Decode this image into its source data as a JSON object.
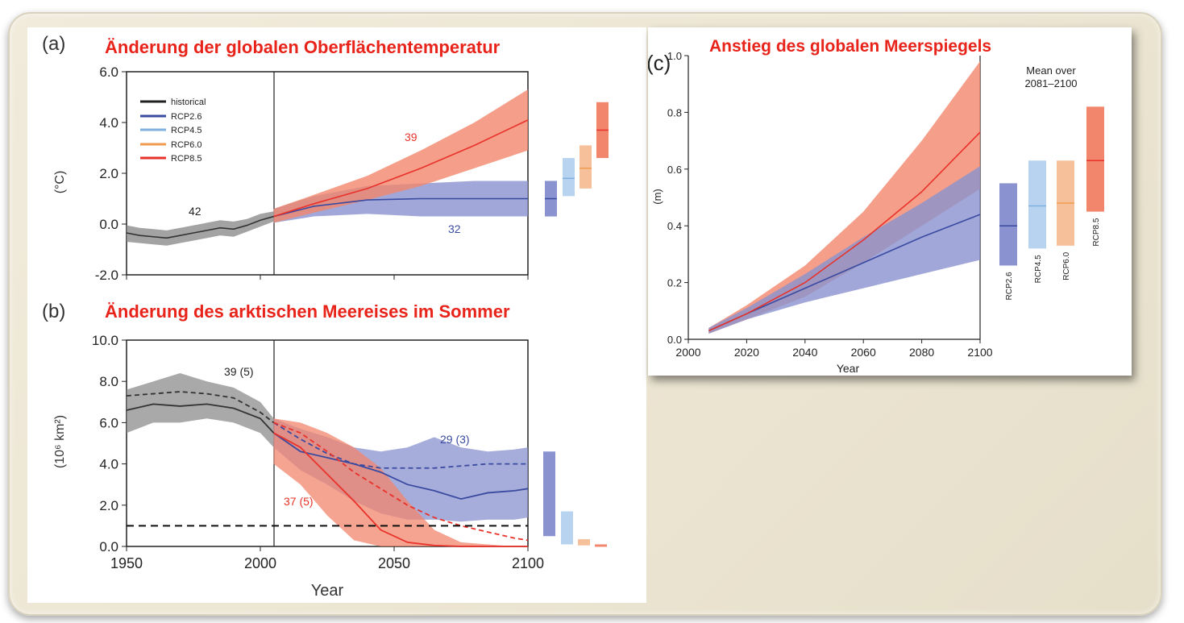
{
  "colors": {
    "historical": "#333333",
    "rcp26": "#3a4aa0",
    "rcp45": "#7fb0e0",
    "rcp60": "#f09a50",
    "rcp85": "#e8322a",
    "rcp26_band": "#8a92cf",
    "rcp85_band": "#f2866c",
    "title_red": "#e8231a"
  },
  "panel_a": {
    "label": "(a)",
    "title": "Änderung der globalen Oberflächentemperatur",
    "ylabel": "(°C)",
    "ann_42": "42",
    "ann_39": "39",
    "ann_32": "32",
    "legend": [
      "historical",
      "RCP2.6",
      "RCP4.5",
      "RCP6.0",
      "RCP8.5"
    ]
  },
  "panel_b": {
    "label": "(b)",
    "title": "Änderung des arktischen Meereises  im Sommer",
    "ylabel": "(10⁶ km²)",
    "xlabel": "Year",
    "ann_39_5": "39 (5)",
    "ann_29_3": "29 (3)",
    "ann_37_5": "37 (5)"
  },
  "panel_c": {
    "label": "(c)",
    "title": "Anstieg des globalen Meerspiegels",
    "ylabel": "(m)",
    "xlabel": "Year",
    "mean_over_1": "Mean over",
    "mean_over_2": "2081–2100",
    "bar_labels": [
      "RCP2.6",
      "RCP4.5",
      "RCP6.0",
      "RCP8.5"
    ]
  },
  "chart_data": [
    {
      "type": "line",
      "ylabel": "(°C)",
      "ylim": [
        -2.0,
        6.0
      ],
      "xlim": [
        1950,
        2100
      ],
      "yticks": [
        "-2.0",
        "0.0",
        "2.0",
        "4.0",
        "6.0"
      ],
      "series": [
        {
          "name": "historical",
          "x": [
            1950,
            1955,
            1960,
            1965,
            1970,
            1975,
            1980,
            1985,
            1990,
            1995,
            2000,
            2005
          ],
          "y": [
            -0.35,
            -0.45,
            -0.5,
            -0.55,
            -0.45,
            -0.35,
            -0.25,
            -0.15,
            -0.2,
            -0.05,
            0.15,
            0.3
          ],
          "lower": [
            -0.7,
            -0.75,
            -0.8,
            -0.85,
            -0.75,
            -0.65,
            -0.55,
            -0.45,
            -0.5,
            -0.3,
            -0.1,
            0.1
          ],
          "upper": [
            -0.05,
            -0.15,
            -0.2,
            -0.25,
            -0.15,
            -0.05,
            0.05,
            0.15,
            0.1,
            0.2,
            0.4,
            0.5
          ]
        },
        {
          "name": "RCP2.6",
          "x": [
            2005,
            2020,
            2040,
            2060,
            2080,
            2100
          ],
          "y": [
            0.3,
            0.7,
            0.95,
            1.0,
            1.0,
            1.0
          ],
          "lower": [
            0.05,
            0.3,
            0.4,
            0.3,
            0.3,
            0.3
          ],
          "upper": [
            0.6,
            1.1,
            1.5,
            1.6,
            1.7,
            1.7
          ]
        },
        {
          "name": "RCP8.5",
          "x": [
            2005,
            2020,
            2040,
            2060,
            2080,
            2100
          ],
          "y": [
            0.3,
            0.8,
            1.4,
            2.2,
            3.1,
            4.1
          ],
          "lower": [
            0.05,
            0.45,
            0.95,
            1.5,
            2.2,
            2.9
          ],
          "upper": [
            0.6,
            1.15,
            1.9,
            2.9,
            4.0,
            5.3
          ]
        }
      ],
      "bars_2081_2100": [
        {
          "name": "RCP2.6",
          "mean": 1.0,
          "low": 0.3,
          "high": 1.7
        },
        {
          "name": "RCP4.5",
          "mean": 1.8,
          "low": 1.1,
          "high": 2.6
        },
        {
          "name": "RCP6.0",
          "mean": 2.2,
          "low": 1.4,
          "high": 3.1
        },
        {
          "name": "RCP8.5",
          "mean": 3.7,
          "low": 2.6,
          "high": 4.8
        }
      ]
    },
    {
      "type": "line",
      "ylabel": "(10⁶ km²)",
      "xlabel": "Year",
      "ylim": [
        0.0,
        10.0
      ],
      "xlim": [
        1950,
        2100
      ],
      "yticks": [
        "0.0",
        "2.0",
        "4.0",
        "6.0",
        "8.0",
        "10.0"
      ],
      "xticks": [
        "1950",
        "2000",
        "2050",
        "2100"
      ],
      "series": [
        {
          "name": "historical",
          "x": [
            1950,
            1960,
            1970,
            1980,
            1990,
            2000,
            2005
          ],
          "y": [
            6.6,
            6.9,
            6.8,
            6.9,
            6.7,
            6.2,
            5.5
          ],
          "dashed_y": [
            7.3,
            7.4,
            7.5,
            7.4,
            7.2,
            6.5,
            6.0
          ],
          "lower": [
            5.5,
            6.0,
            6.0,
            6.2,
            6.0,
            5.5,
            4.8
          ],
          "upper": [
            7.6,
            8.0,
            8.4,
            8.0,
            7.7,
            7.0,
            6.2
          ]
        },
        {
          "name": "RCP2.6",
          "x": [
            2005,
            2015,
            2025,
            2035,
            2045,
            2055,
            2065,
            2075,
            2085,
            2095,
            2100
          ],
          "y": [
            5.5,
            4.6,
            4.3,
            4.0,
            3.6,
            3.0,
            2.7,
            2.3,
            2.6,
            2.7,
            2.8
          ],
          "dashed_y": [
            6.0,
            5.2,
            4.5,
            4.0,
            3.8,
            3.8,
            3.8,
            3.9,
            4.0,
            4.0,
            4.0
          ],
          "lower": [
            4.8,
            3.7,
            3.0,
            2.2,
            1.6,
            1.3,
            1.3,
            1.2,
            1.3,
            1.3,
            1.4
          ],
          "upper": [
            6.2,
            5.7,
            5.3,
            4.8,
            4.6,
            4.8,
            5.3,
            4.8,
            4.6,
            4.7,
            4.8
          ]
        },
        {
          "name": "RCP8.5",
          "x": [
            2005,
            2015,
            2025,
            2035,
            2045,
            2055,
            2065,
            2075,
            2085,
            2095,
            2100
          ],
          "y": [
            5.5,
            4.8,
            3.5,
            2.2,
            0.8,
            0.2,
            0.05,
            0.0,
            0.0,
            0.0,
            0.0
          ],
          "dashed_y": [
            6.0,
            5.5,
            4.6,
            3.6,
            2.8,
            2.0,
            1.4,
            1.0,
            0.7,
            0.4,
            0.3
          ],
          "lower": [
            4.0,
            3.0,
            1.5,
            0.3,
            0.0,
            0.0,
            0.0,
            0.0,
            0.0,
            0.0,
            0.0
          ],
          "upper": [
            6.2,
            6.0,
            5.5,
            4.8,
            3.8,
            2.2,
            0.8,
            0.2,
            0.1,
            0.0,
            0.0
          ]
        }
      ],
      "threshold_dashed": 1.0,
      "bars_2081_2100": [
        {
          "name": "RCP2.6",
          "low": 0.5,
          "high": 4.6
        },
        {
          "name": "RCP4.5",
          "low": 0.1,
          "high": 1.7
        },
        {
          "name": "RCP6.0",
          "low": 0.05,
          "high": 0.35
        },
        {
          "name": "RCP8.5",
          "low": 0.0,
          "high": 0.1
        }
      ]
    },
    {
      "type": "line",
      "ylabel": "(m)",
      "xlabel": "Year",
      "ylim": [
        0.0,
        1.0
      ],
      "xlim": [
        2000,
        2100
      ],
      "yticks": [
        "0.0",
        "0.2",
        "0.4",
        "0.6",
        "0.8",
        "1.0"
      ],
      "xticks": [
        "2000",
        "2020",
        "2040",
        "2060",
        "2080",
        "2100"
      ],
      "series": [
        {
          "name": "RCP2.6",
          "x": [
            2007,
            2020,
            2040,
            2060,
            2080,
            2100
          ],
          "y": [
            0.03,
            0.09,
            0.18,
            0.27,
            0.36,
            0.44
          ],
          "lower": [
            0.02,
            0.07,
            0.13,
            0.18,
            0.23,
            0.28
          ],
          "upper": [
            0.04,
            0.11,
            0.23,
            0.36,
            0.48,
            0.61
          ]
        },
        {
          "name": "RCP8.5",
          "x": [
            2007,
            2020,
            2040,
            2060,
            2080,
            2100
          ],
          "y": [
            0.03,
            0.09,
            0.2,
            0.35,
            0.52,
            0.73
          ],
          "lower": [
            0.02,
            0.07,
            0.15,
            0.27,
            0.4,
            0.53
          ],
          "upper": [
            0.04,
            0.12,
            0.26,
            0.45,
            0.7,
            0.98
          ]
        }
      ],
      "bars_2081_2100": [
        {
          "name": "RCP2.6",
          "mean": 0.4,
          "low": 0.26,
          "high": 0.55
        },
        {
          "name": "RCP4.5",
          "mean": 0.47,
          "low": 0.32,
          "high": 0.63
        },
        {
          "name": "RCP6.0",
          "mean": 0.48,
          "low": 0.33,
          "high": 0.63
        },
        {
          "name": "RCP8.5",
          "mean": 0.63,
          "low": 0.45,
          "high": 0.82
        }
      ]
    }
  ]
}
